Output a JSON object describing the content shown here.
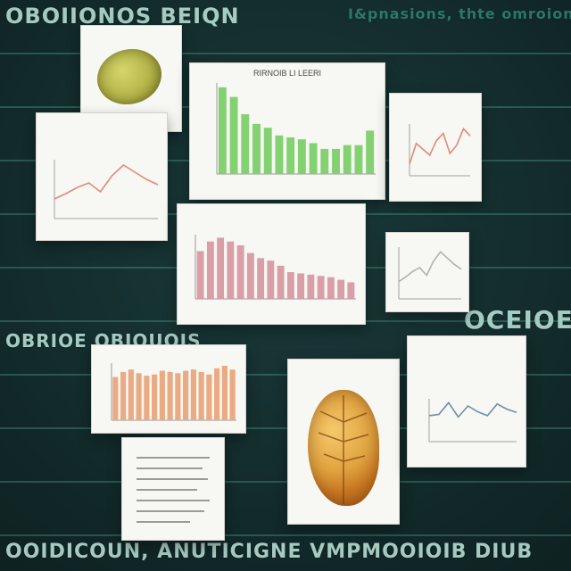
{
  "background": {
    "lines": [
      "OBOIIONOS BEIQN",
      "I&pnasions, thte omroion",
      "OCEIOE",
      "OBRIOE OBIQUOIS",
      "OOIDICOUN, ANUTICIGNE VMPMOOIOIB DIUB"
    ]
  },
  "accents": {
    "bg_text": "#5fd4b4",
    "bar_green": "#7dcf6a",
    "bar_orange": "#e9a57b",
    "bar_pink": "#d79aa3",
    "line_red": "#e08a76",
    "line_blue": "#6e8fa8"
  },
  "cards": {
    "top_bar": {
      "title": "RIRNOIB LI LEERI"
    },
    "mid_bar": {
      "title": ""
    },
    "bottom_bar": {
      "title": ""
    },
    "small_line_right": {
      "title": ""
    },
    "left_line": {
      "title": ""
    },
    "right_line_lower": {
      "title": ""
    },
    "right_small_line": {
      "title": ""
    },
    "text_card": {
      "title": ""
    }
  },
  "chart_data": [
    {
      "type": "bar",
      "values": [
        90,
        80,
        62,
        52,
        48,
        40,
        38,
        36,
        32,
        26,
        26,
        30,
        30,
        45
      ]
    },
    {
      "type": "bar",
      "values": [
        75,
        90,
        96,
        90,
        84,
        72,
        64,
        60,
        52,
        42,
        40,
        38,
        36,
        34,
        30,
        26
      ]
    },
    {
      "type": "bar",
      "values": [
        70,
        78,
        82,
        76,
        72,
        74,
        80,
        78,
        76,
        80,
        82,
        78,
        74,
        84,
        88,
        82
      ]
    },
    {
      "type": "line",
      "values": [
        20,
        55,
        45,
        35,
        60,
        72,
        38,
        52,
        80,
        68
      ]
    },
    {
      "type": "line",
      "values": [
        22,
        28,
        35,
        40,
        30,
        48,
        60,
        52,
        44,
        38
      ]
    },
    {
      "type": "line",
      "values": [
        40,
        42,
        60,
        38,
        55,
        46,
        40,
        58,
        50,
        45
      ]
    }
  ]
}
